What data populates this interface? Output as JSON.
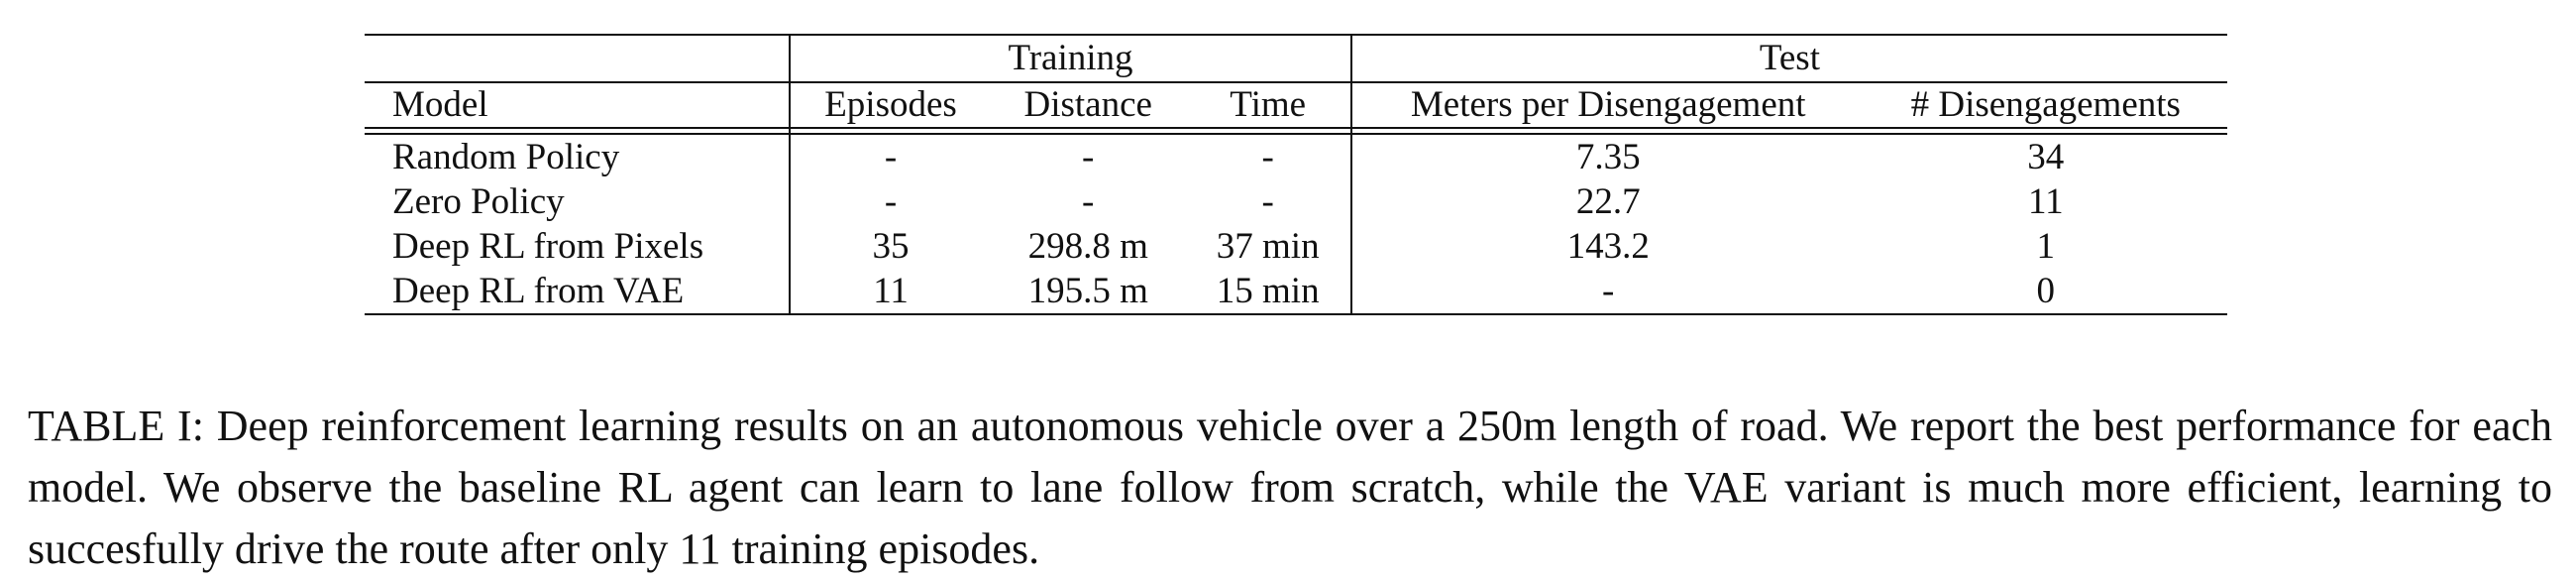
{
  "table": {
    "group_headers": {
      "training": "Training",
      "test": "Test"
    },
    "columns": [
      "Model",
      "Episodes",
      "Distance",
      "Time",
      "Meters per Disengagement",
      "# Disengagements"
    ],
    "rows": [
      [
        "Random Policy",
        "-",
        "-",
        "-",
        "7.35",
        "34"
      ],
      [
        "Zero Policy",
        "-",
        "-",
        "-",
        "22.7",
        "11"
      ],
      [
        "Deep RL from Pixels",
        "35",
        "298.8 m",
        "37 min",
        "143.2",
        "1"
      ],
      [
        "Deep RL from VAE",
        "11",
        "195.5 m",
        "15 min",
        "-",
        "0"
      ]
    ]
  },
  "caption": "TABLE I: Deep reinforcement learning results on an autonomous vehicle over a 250m length of road. We report the best performance for each model. We observe the baseline RL agent can learn to lane follow from scratch, while the VAE variant is much more efficient, learning to succesfully drive the route after only 11 training episodes."
}
